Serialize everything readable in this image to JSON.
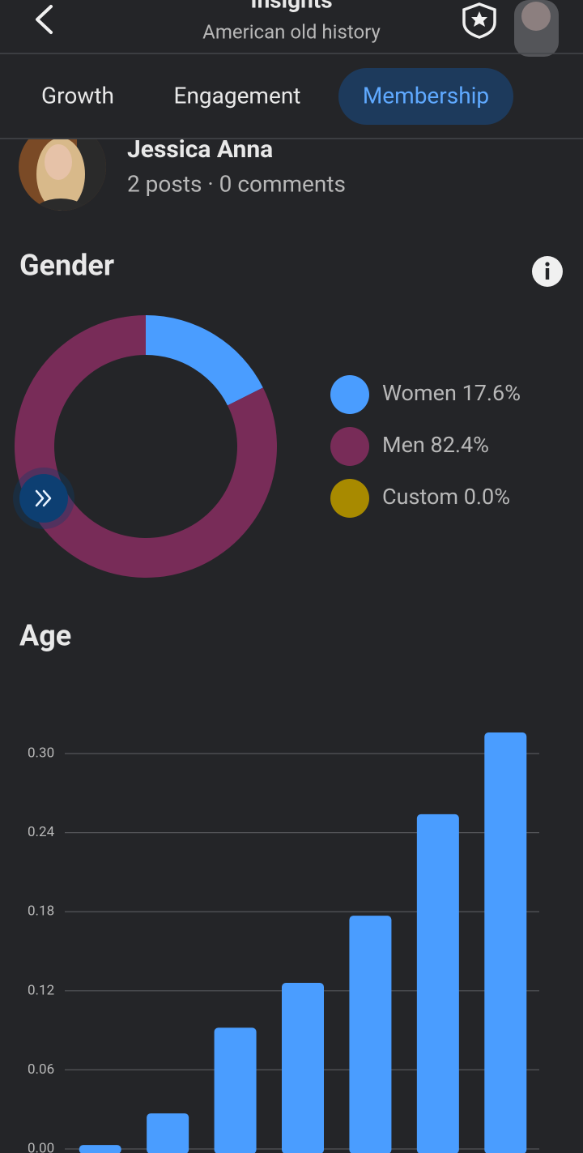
{
  "header": {
    "title": "Insights",
    "subtitle": "American old history"
  },
  "tabs": [
    "Growth",
    "Engagement",
    "Membership"
  ],
  "member": {
    "name": "Jessica Anna",
    "stats": "2 posts · 0 comments"
  },
  "chart_data": [
    {
      "type": "pie",
      "title": "Gender",
      "categories": [
        "Women",
        "Men",
        "Custom"
      ],
      "values": [
        17.6,
        82.4,
        0.0
      ],
      "value_labels": [
        "17.6%",
        "82.4%",
        "0.0%"
      ],
      "colors": [
        "#4a9dff",
        "#782c58",
        "#a88a00"
      ],
      "legend": "right"
    },
    {
      "type": "bar",
      "title": "Age",
      "values": [
        0.003,
        0.027,
        0.092,
        0.126,
        0.177,
        0.254,
        0.316
      ],
      "color": "#4a9dff",
      "ylim": [
        0,
        0.32
      ],
      "yticks": [
        {
          "value": 0,
          "label": "0.00"
        },
        0.06,
        0.12,
        0.18,
        0.24,
        {
          "value": 0.3,
          "label": "0.30"
        }
      ],
      "grid": true
    }
  ]
}
